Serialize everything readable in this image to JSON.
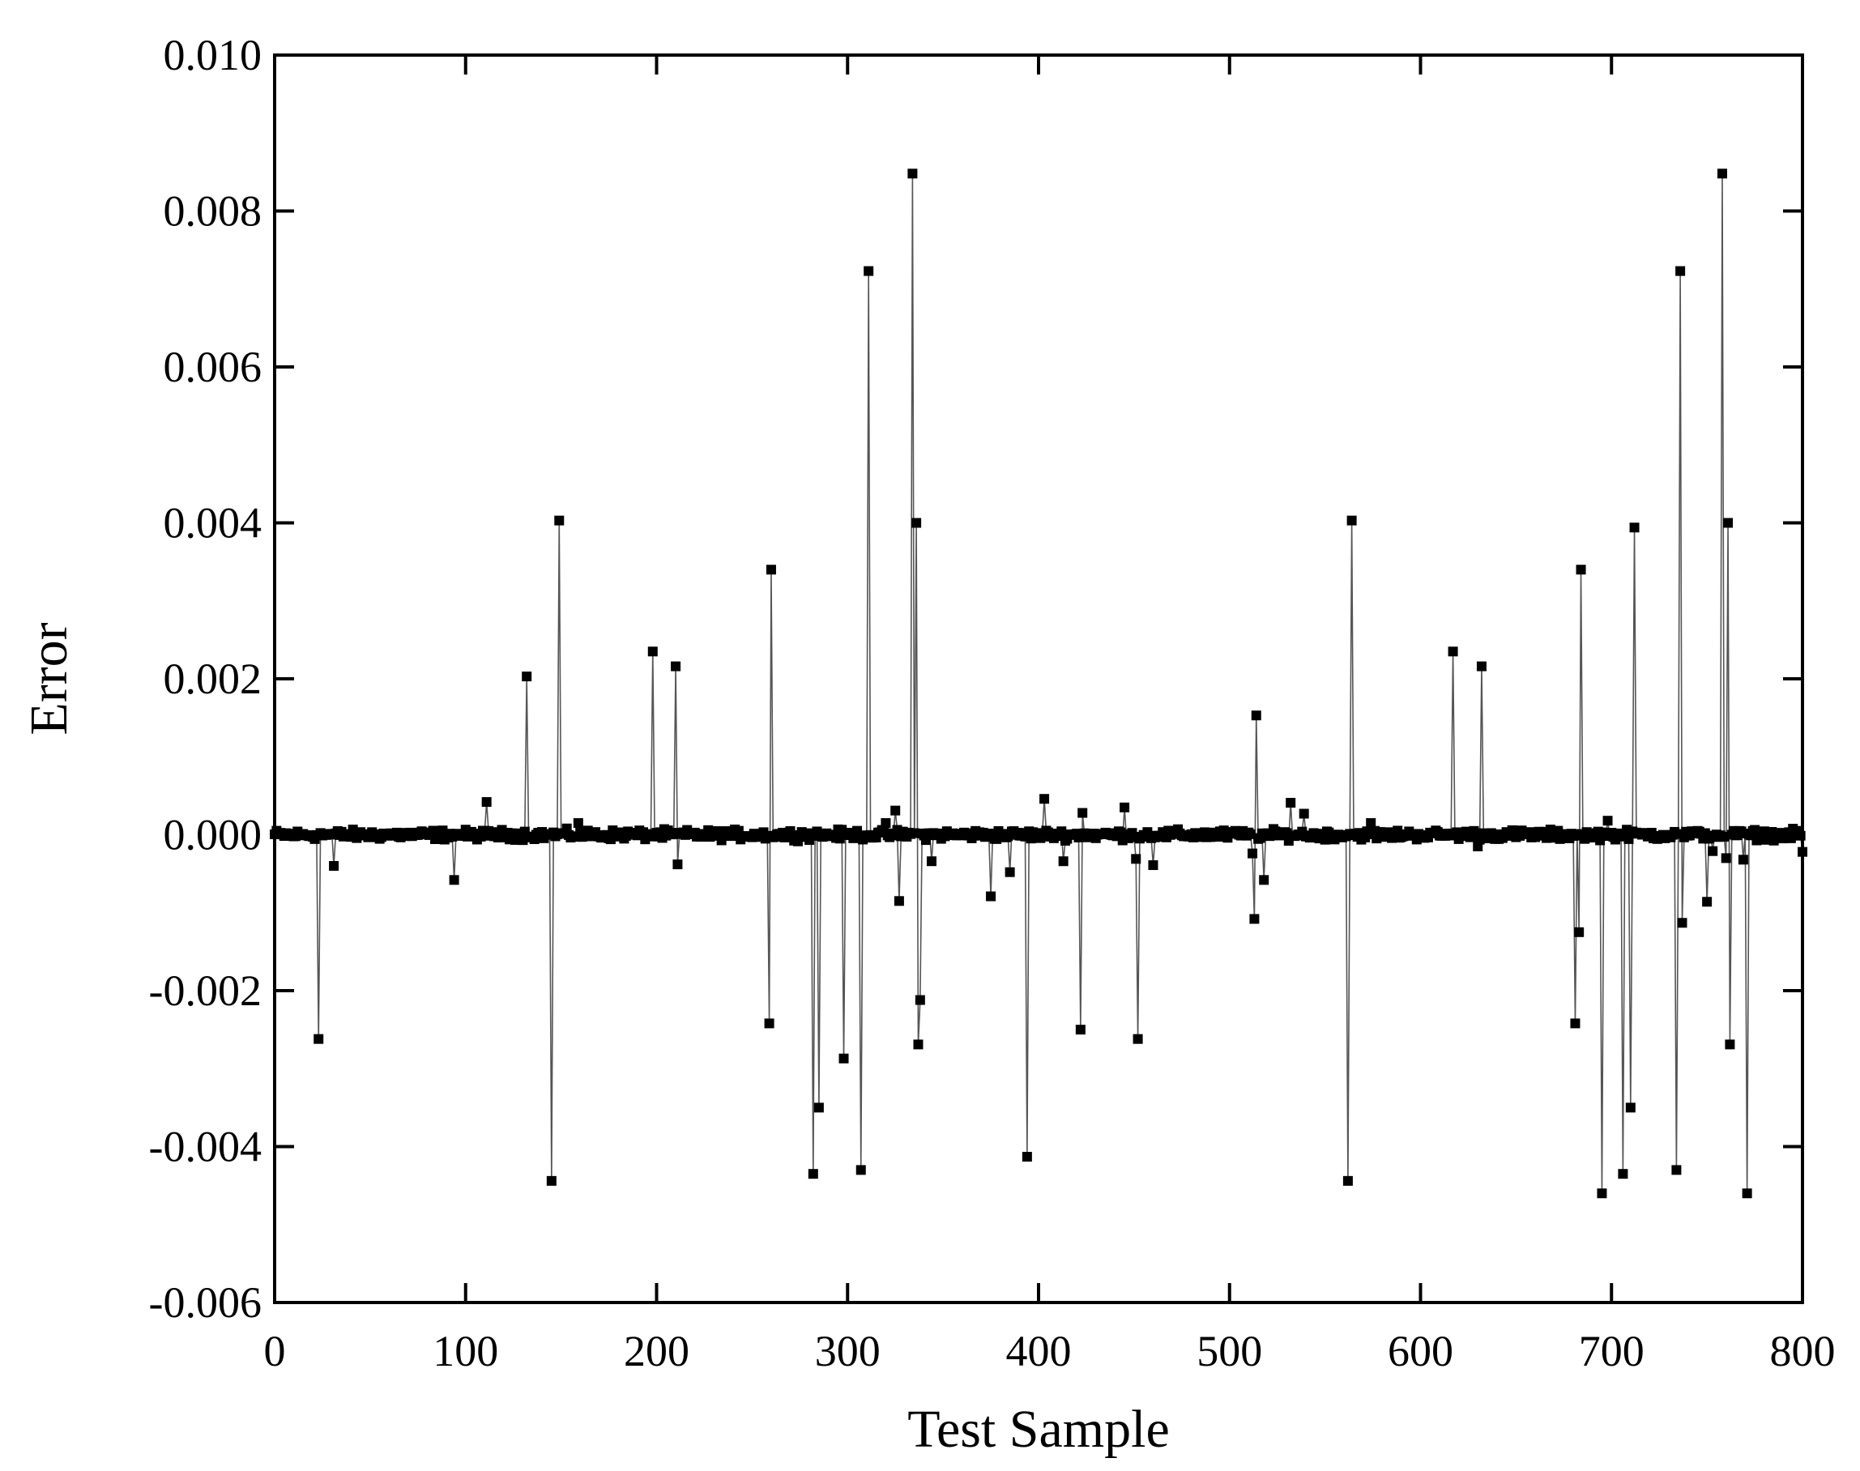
{
  "chart_data": {
    "type": "line",
    "title": "",
    "xlabel": "Test Sample",
    "ylabel": "Error",
    "xlim": [
      0,
      800
    ],
    "ylim": [
      -0.006,
      0.01
    ],
    "xticks": [
      0,
      100,
      200,
      300,
      400,
      500,
      600,
      700,
      800
    ],
    "xtick_labels": [
      "0",
      "100",
      "200",
      "300",
      "400",
      "500",
      "600",
      "700",
      "800"
    ],
    "yticks": [
      -0.006,
      -0.004,
      -0.002,
      0.0,
      0.002,
      0.004,
      0.006,
      0.008,
      0.01
    ],
    "ytick_labels": [
      "-0.006",
      "-0.004",
      "-0.002",
      "0.000",
      "0.002",
      "0.004",
      "0.006",
      "0.008",
      "0.010"
    ],
    "grid": false,
    "legend": "none",
    "marker": "square",
    "colors": {
      "line": "#555555",
      "marker": "#000000",
      "axis": "#000000"
    },
    "notable_points": [
      {
        "x": 23,
        "y": -0.00262
      },
      {
        "x": 31,
        "y": -0.0004
      },
      {
        "x": 94,
        "y": -0.00058
      },
      {
        "x": 111,
        "y": 0.00042
      },
      {
        "x": 132,
        "y": 0.00203
      },
      {
        "x": 145,
        "y": -0.00444
      },
      {
        "x": 149,
        "y": 0.00403
      },
      {
        "x": 159,
        "y": 0.00015
      },
      {
        "x": 198,
        "y": 0.00235
      },
      {
        "x": 210,
        "y": 0.00216
      },
      {
        "x": 211,
        "y": -0.00038
      },
      {
        "x": 259,
        "y": -0.00242
      },
      {
        "x": 260,
        "y": 0.0034
      },
      {
        "x": 282,
        "y": -0.00435
      },
      {
        "x": 285,
        "y": -0.0035
      },
      {
        "x": 298,
        "y": -0.00287
      },
      {
        "x": 307,
        "y": -0.0043
      },
      {
        "x": 311,
        "y": 0.00723
      },
      {
        "x": 320,
        "y": 0.00015
      },
      {
        "x": 325,
        "y": 0.00031
      },
      {
        "x": 327,
        "y": -0.00085
      },
      {
        "x": 334,
        "y": 0.00848
      },
      {
        "x": 336,
        "y": 0.004
      },
      {
        "x": 337,
        "y": -0.00269
      },
      {
        "x": 338,
        "y": -0.00212
      },
      {
        "x": 344,
        "y": -0.00034
      },
      {
        "x": 375,
        "y": -0.00079
      },
      {
        "x": 385,
        "y": -0.00048
      },
      {
        "x": 394,
        "y": -0.00413
      },
      {
        "x": 403,
        "y": 0.00046
      },
      {
        "x": 413,
        "y": -0.00034
      },
      {
        "x": 422,
        "y": -0.0025
      },
      {
        "x": 423,
        "y": 0.00028
      },
      {
        "x": 445,
        "y": 0.00035
      },
      {
        "x": 451,
        "y": -0.00031
      },
      {
        "x": 452,
        "y": -0.00262
      },
      {
        "x": 460,
        "y": -0.00039
      },
      {
        "x": 512,
        "y": -0.00024
      },
      {
        "x": 513,
        "y": -0.00108
      },
      {
        "x": 514,
        "y": 0.00153
      },
      {
        "x": 518,
        "y": -0.00058
      },
      {
        "x": 532,
        "y": 0.00041
      },
      {
        "x": 539,
        "y": 0.00027
      },
      {
        "x": 562,
        "y": -0.00444
      },
      {
        "x": 564,
        "y": 0.00403
      },
      {
        "x": 574,
        "y": 0.00015
      },
      {
        "x": 617,
        "y": 0.00235
      },
      {
        "x": 630,
        "y": -0.00015
      },
      {
        "x": 632,
        "y": 0.00216
      },
      {
        "x": 681,
        "y": -0.00242
      },
      {
        "x": 683,
        "y": -0.00125
      },
      {
        "x": 684,
        "y": 0.0034
      },
      {
        "x": 695,
        "y": -0.0046
      },
      {
        "x": 698,
        "y": 0.00018
      },
      {
        "x": 706,
        "y": -0.00435
      },
      {
        "x": 710,
        "y": -0.0035
      },
      {
        "x": 712,
        "y": 0.00394
      },
      {
        "x": 734,
        "y": -0.0043
      },
      {
        "x": 736,
        "y": 0.00723
      },
      {
        "x": 737,
        "y": -0.00113
      },
      {
        "x": 750,
        "y": -0.00086
      },
      {
        "x": 753,
        "y": -0.00021
      },
      {
        "x": 758,
        "y": 0.00848
      },
      {
        "x": 760,
        "y": -0.0003
      },
      {
        "x": 761,
        "y": 0.004
      },
      {
        "x": 762,
        "y": -0.00269
      },
      {
        "x": 769,
        "y": -0.00032
      },
      {
        "x": 771,
        "y": -0.0046
      },
      {
        "x": 800,
        "y": -0.00022
      }
    ]
  }
}
